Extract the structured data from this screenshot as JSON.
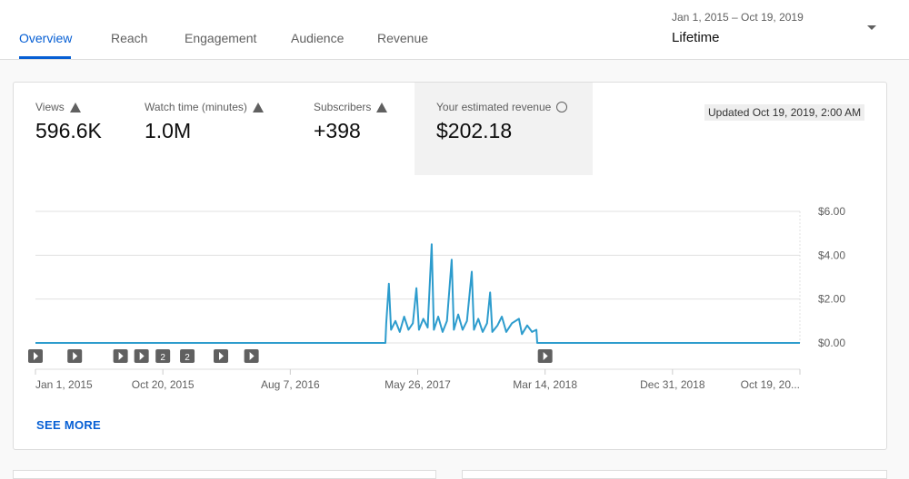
{
  "tabs": [
    {
      "label": "Overview",
      "active": true
    },
    {
      "label": "Reach"
    },
    {
      "label": "Engagement"
    },
    {
      "label": "Audience"
    },
    {
      "label": "Revenue"
    }
  ],
  "date_range": {
    "range": "Jan 1, 2015 – Oct 19, 2019",
    "label": "Lifetime"
  },
  "metrics": [
    {
      "label": "Views",
      "value": "596.6K",
      "icon": "warning-icon"
    },
    {
      "label": "Watch time (minutes)",
      "value": "1.0M",
      "icon": "warning-icon"
    },
    {
      "label": "Subscribers",
      "value": "+398",
      "icon": "warning-icon"
    },
    {
      "label": "Your estimated revenue",
      "value": "$202.18",
      "icon": "clock-icon",
      "selected": true
    }
  ],
  "updated": "Updated Oct 19, 2019, 2:00 AM",
  "see_more": "SEE MORE",
  "chart_data": {
    "type": "line",
    "color": "#2d9ccd",
    "xlim": [
      "2015-01-01",
      "2019-10-19"
    ],
    "ylim": [
      0,
      6
    ],
    "y_ticks": [
      "$0.00",
      "$2.00",
      "$4.00",
      "$6.00"
    ],
    "y_tick_values": [
      0,
      2,
      4,
      6
    ],
    "x_ticks": [
      "Jan 1, 2015",
      "Oct 20, 2015",
      "Aug 7, 2016",
      "May 26, 2017",
      "Mar 14, 2018",
      "Dec 31, 2018",
      "Oct 19, 20..."
    ],
    "x_tick_dates": [
      "2015-01-01",
      "2015-10-20",
      "2016-08-07",
      "2017-05-26",
      "2018-03-14",
      "2018-12-31",
      "2019-10-19"
    ],
    "grid": true,
    "points": [
      [
        "2015-01-01",
        0
      ],
      [
        "2017-03-13",
        0
      ],
      [
        "2017-03-15",
        0.9
      ],
      [
        "2017-03-21",
        2.7
      ],
      [
        "2017-03-26",
        0.6
      ],
      [
        "2017-04-05",
        1.0
      ],
      [
        "2017-04-15",
        0.5
      ],
      [
        "2017-04-25",
        1.2
      ],
      [
        "2017-05-05",
        0.6
      ],
      [
        "2017-05-15",
        0.9
      ],
      [
        "2017-05-23",
        2.5
      ],
      [
        "2017-05-29",
        0.6
      ],
      [
        "2017-06-08",
        1.1
      ],
      [
        "2017-06-18",
        0.7
      ],
      [
        "2017-06-27",
        4.5
      ],
      [
        "2017-07-02",
        0.6
      ],
      [
        "2017-07-12",
        1.2
      ],
      [
        "2017-07-22",
        0.5
      ],
      [
        "2017-08-01",
        1.0
      ],
      [
        "2017-08-12",
        3.8
      ],
      [
        "2017-08-17",
        0.6
      ],
      [
        "2017-08-27",
        1.3
      ],
      [
        "2017-09-06",
        0.6
      ],
      [
        "2017-09-16",
        1.0
      ],
      [
        "2017-09-27",
        3.25
      ],
      [
        "2017-10-02",
        0.6
      ],
      [
        "2017-10-12",
        1.1
      ],
      [
        "2017-10-22",
        0.5
      ],
      [
        "2017-11-01",
        0.9
      ],
      [
        "2017-11-08",
        2.3
      ],
      [
        "2017-11-13",
        0.5
      ],
      [
        "2017-11-25",
        0.8
      ],
      [
        "2017-12-05",
        1.2
      ],
      [
        "2017-12-15",
        0.5
      ],
      [
        "2017-12-28",
        0.9
      ],
      [
        "2018-01-13",
        1.1
      ],
      [
        "2018-01-20",
        0.4
      ],
      [
        "2018-02-01",
        0.8
      ],
      [
        "2018-02-12",
        0.5
      ],
      [
        "2018-02-22",
        0.6
      ],
      [
        "2018-02-24",
        0
      ],
      [
        "2019-10-19",
        0
      ]
    ],
    "annotations": [
      {
        "date": "2015-01-01"
      },
      {
        "date": "2015-04-01"
      },
      {
        "date": "2015-07-15"
      },
      {
        "date": "2015-09-01"
      },
      {
        "date": "2015-10-20",
        "label": "2"
      },
      {
        "date": "2015-12-15",
        "label": "2"
      },
      {
        "date": "2016-03-01"
      },
      {
        "date": "2016-05-10"
      },
      {
        "date": "2018-03-14"
      }
    ]
  }
}
